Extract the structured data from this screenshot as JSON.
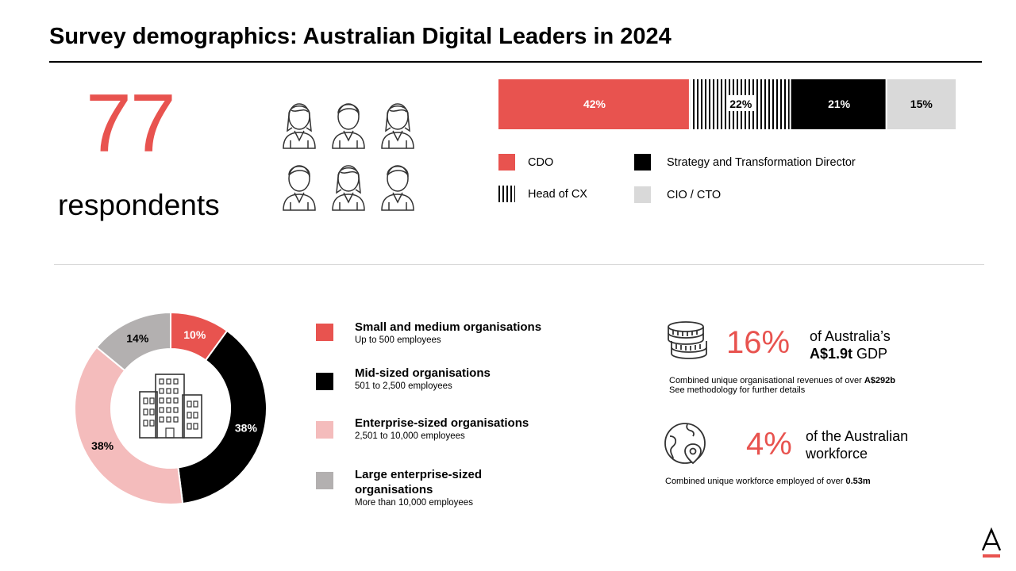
{
  "title": "Survey demographics: Australian Digital Leaders in 2024",
  "respondents": {
    "count": "77",
    "label": "respondents"
  },
  "people_icons": [
    "female-person-icon",
    "male-person-icon",
    "female-person-icon",
    "male-person-icon",
    "female-person-icon",
    "male-person-icon"
  ],
  "chart_data": [
    {
      "type": "bar",
      "orientation": "horizontal-stacked-100",
      "title": "",
      "categories": [
        "CDO",
        "Head of CX",
        "Strategy and Transformation Director",
        "CIO / CTO"
      ],
      "values": [
        42,
        22,
        21,
        15
      ],
      "value_labels": [
        "42%",
        "22%",
        "21%",
        "15%"
      ],
      "colors": [
        "#e8534f",
        "vertical-stripes",
        "#000000",
        "#d9d9d9"
      ],
      "legend_placement": "below"
    },
    {
      "type": "pie",
      "variant": "donut",
      "title": "",
      "categories": [
        "Small and medium organisations",
        "Mid-sized organisations",
        "Enterprise-sized organisations",
        "Large enterprise-sized organisations"
      ],
      "values": [
        10,
        38,
        38,
        14
      ],
      "value_labels": [
        "10%",
        "38%",
        "38%",
        "14%"
      ],
      "colors": [
        "#e8534f",
        "#000000",
        "#f4bcbc",
        "#b3b0b0"
      ],
      "center_icon": "office-building-icon",
      "legend_placement": "right"
    }
  ],
  "role_legend": [
    {
      "label": "CDO",
      "swatch": "#e8534f"
    },
    {
      "label": "Head of CX",
      "swatch": "vertical-stripes"
    },
    {
      "label": "Strategy and Transformation Director",
      "swatch": "#000000"
    },
    {
      "label": "CIO / CTO",
      "swatch": "#d9d9d9"
    }
  ],
  "org_legend": [
    {
      "name": "Small and medium organisations",
      "sub": "Up to 500 employees",
      "swatch": "#e8534f"
    },
    {
      "name": "Mid-sized organisations",
      "sub": "501 to 2,500 employees",
      "swatch": "#000000"
    },
    {
      "name": "Enterprise-sized organisations",
      "sub": "2,501 to 10,000 employees",
      "swatch": "#f4bcbc"
    },
    {
      "name": "Large enterprise-sized organisations",
      "sub": "More than 10,000 employees",
      "swatch": "#b3b0b0"
    }
  ],
  "stats": {
    "gdp": {
      "icon": "coin-stack-icon",
      "pct": "16%",
      "line1": "of Australia’s",
      "line2_bold": "A$1.9t",
      "line2_rest": " GDP",
      "note1_pre": "Combined unique organisational revenues of over ",
      "note1_bold": "A$292b",
      "note2": "See methodology for further details"
    },
    "workforce": {
      "icon": "globe-location-icon",
      "pct": "4%",
      "line1": "of the Australian",
      "line2": "workforce",
      "note_pre": "Combined unique workforce employed of over ",
      "note_bold": "0.53m"
    }
  },
  "colors": {
    "accent": "#e8534f",
    "pink": "#f4bcbc",
    "grey": "#b3b0b0",
    "light_grey": "#d9d9d9"
  },
  "brand": {
    "logo": "accenture-a-logo-icon"
  }
}
